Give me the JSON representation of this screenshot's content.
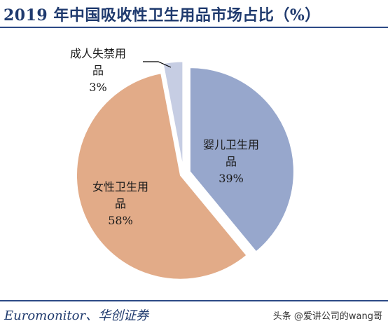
{
  "title": "2019 年中国吸收性卫生用品市场占比（%）",
  "source": "Euromonitor、华创证券",
  "watermark": "头条 @爱讲公司的wang哥",
  "chart_data": {
    "type": "pie",
    "title": "2019 年中国吸收性卫生用品市场占比（%）",
    "slices": [
      {
        "label_lines": [
          "婴儿卫生用",
          "品"
        ],
        "value_label": "39%",
        "value": 39,
        "color": "#97a7cc"
      },
      {
        "label_lines": [
          "女性卫生用",
          "品"
        ],
        "value_label": "58%",
        "value": 58,
        "color": "#e2ab88"
      },
      {
        "label_lines": [
          "成人失禁用",
          "品"
        ],
        "value_label": "3%",
        "value": 3,
        "color": "#c6cde3"
      }
    ],
    "legend": "none"
  }
}
